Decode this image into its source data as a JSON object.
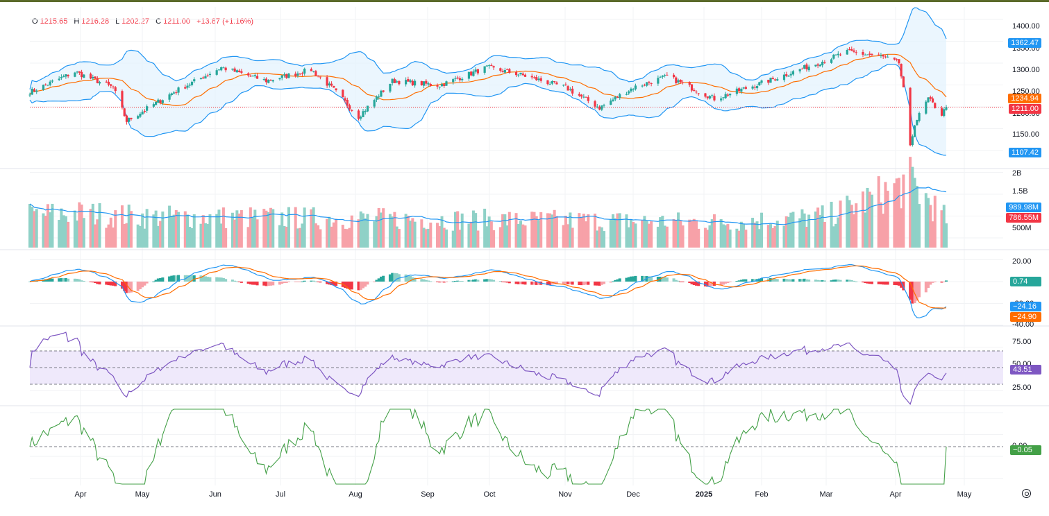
{
  "ohlc": {
    "o_label": "O",
    "o": "1215.65",
    "h_label": "H",
    "h": "1216.28",
    "l_label": "L",
    "l": "1202.27",
    "c_label": "C",
    "c": "1211.00",
    "change": "+13.87 (+1.16%)"
  },
  "colors": {
    "up": "#26a69a",
    "down": "#f23645",
    "vol_up": "#8fd1c7",
    "vol_down": "#f7a1a8",
    "bollinger": "#2196f3",
    "bollinger_fill": "#e3f2fd",
    "ma": "#ff6d00",
    "rsi": "#7e57c2",
    "rsi_band": "#efe9fb",
    "osc": "#43a047"
  },
  "price_axis": [
    "1400.00",
    "1350.00",
    "1300.00",
    "1250.00",
    "1200.00",
    "1150.00"
  ],
  "volume_axis": [
    "2B",
    "1.5B",
    "500M"
  ],
  "macd_axis": [
    "20.00",
    "-20.00",
    "-40.00"
  ],
  "rsi_axis": [
    "75.00",
    "50.00",
    "25.00"
  ],
  "osc_axis": [
    "0.00"
  ],
  "price_tags": {
    "bb_upper": "1362.47",
    "bb_mid": "1234.94",
    "last": "1211.00",
    "bb_lower": "1107.42",
    "vol_ma": "989.98M",
    "vol_last": "786.55M",
    "macd_hist": "0.74",
    "macd_line": "−24.16",
    "macd_signal": "−24.90",
    "rsi": "43.51",
    "osc": "−0.05"
  },
  "months": [
    "Apr",
    "May",
    "Jun",
    "Jul",
    "Aug",
    "Sep",
    "Oct",
    "Nov",
    "Dec",
    "2025",
    "Feb",
    "Mar",
    "Apr",
    "May"
  ],
  "chart_data": {
    "type": "candlestick",
    "ylim": [
      1100,
      1420
    ],
    "anchors": [
      {
        "date": "2024-03-12",
        "close": 1245
      },
      {
        "date": "2024-04-01",
        "close": 1290
      },
      {
        "date": "2024-04-18",
        "close": 1255
      },
      {
        "date": "2024-04-24",
        "close": 1180
      },
      {
        "date": "2024-05-15",
        "close": 1245
      },
      {
        "date": "2024-06-05",
        "close": 1300
      },
      {
        "date": "2024-06-25",
        "close": 1270
      },
      {
        "date": "2024-07-15",
        "close": 1295
      },
      {
        "date": "2024-07-25",
        "close": 1250
      },
      {
        "date": "2024-08-05",
        "close": 1190
      },
      {
        "date": "2024-08-20",
        "close": 1270
      },
      {
        "date": "2024-09-10",
        "close": 1260
      },
      {
        "date": "2024-10-01",
        "close": 1300
      },
      {
        "date": "2024-10-15",
        "close": 1285
      },
      {
        "date": "2024-11-05",
        "close": 1255
      },
      {
        "date": "2024-11-20",
        "close": 1210
      },
      {
        "date": "2024-12-05",
        "close": 1255
      },
      {
        "date": "2024-12-20",
        "close": 1280
      },
      {
        "date": "2025-01-10",
        "close": 1230
      },
      {
        "date": "2025-02-03",
        "close": 1270
      },
      {
        "date": "2025-02-25",
        "close": 1310
      },
      {
        "date": "2025-03-10",
        "close": 1335
      },
      {
        "date": "2025-03-25",
        "close": 1325
      },
      {
        "date": "2025-04-02",
        "close": 1310
      },
      {
        "date": "2025-04-04",
        "close": 1250
      },
      {
        "date": "2025-04-07",
        "close": 1120
      },
      {
        "date": "2025-04-09",
        "close": 1175
      },
      {
        "date": "2025-04-15",
        "close": 1230
      },
      {
        "date": "2025-04-21",
        "close": 1195
      },
      {
        "date": "2025-04-23",
        "close": 1211
      }
    ],
    "volume_anchors": [
      {
        "date": "2024-03-12",
        "value": 900
      },
      {
        "date": "2024-04-01",
        "value": 950
      },
      {
        "date": "2024-05-01",
        "value": 850
      },
      {
        "date": "2024-07-01",
        "value": 820
      },
      {
        "date": "2024-09-01",
        "value": 780
      },
      {
        "date": "2024-11-01",
        "value": 750
      },
      {
        "date": "2025-01-15",
        "value": 700
      },
      {
        "date": "2025-03-01",
        "value": 850
      },
      {
        "date": "2025-04-07",
        "value": 1800
      },
      {
        "date": "2025-04-23",
        "value": 786.55
      }
    ],
    "indicators": {
      "bollinger": {
        "upper_last": 1362.47,
        "mid_last": 1234.94,
        "lower_last": 1107.42
      },
      "volume_ma_last": 989.98,
      "macd": {
        "line_last": -24.16,
        "signal_last": -24.9,
        "hist_last": 0.74
      },
      "rsi_last": 43.51,
      "osc_last": -0.05
    }
  }
}
